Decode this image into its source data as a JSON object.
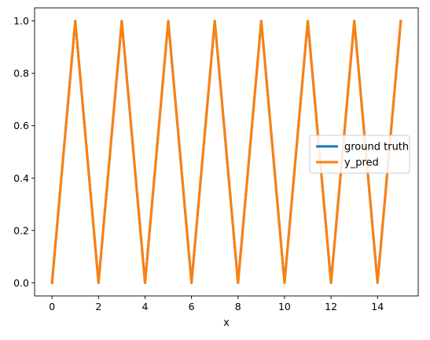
{
  "chart_data": {
    "type": "line",
    "title": "",
    "xlabel": "x",
    "ylabel": "",
    "xlim": [
      -0.75,
      15.75
    ],
    "ylim": [
      -0.05,
      1.05
    ],
    "xticks": [
      0,
      2,
      4,
      6,
      8,
      10,
      12,
      14
    ],
    "yticks": [
      0.0,
      0.2,
      0.4,
      0.6,
      0.8,
      1.0
    ],
    "xtick_labels": [
      "0",
      "2",
      "4",
      "6",
      "8",
      "10",
      "12",
      "14"
    ],
    "ytick_labels": [
      "0.0",
      "0.2",
      "0.4",
      "0.6",
      "0.8",
      "1.0"
    ],
    "grid": false,
    "legend_position": "center-right",
    "x": [
      0,
      1,
      2,
      3,
      4,
      5,
      6,
      7,
      8,
      9,
      10,
      11,
      12,
      13,
      14,
      15
    ],
    "series": [
      {
        "name": "ground truth",
        "color": "#1f77b4",
        "values": [
          0,
          1,
          0,
          1,
          0,
          1,
          0,
          1,
          0,
          1,
          0,
          1,
          0,
          1,
          0,
          1
        ]
      },
      {
        "name": "y_pred",
        "color": "#ff7f0e",
        "values": [
          0,
          1,
          0,
          1,
          0,
          1,
          0,
          1,
          0,
          1,
          0,
          1,
          0,
          1,
          0,
          1
        ]
      }
    ]
  }
}
